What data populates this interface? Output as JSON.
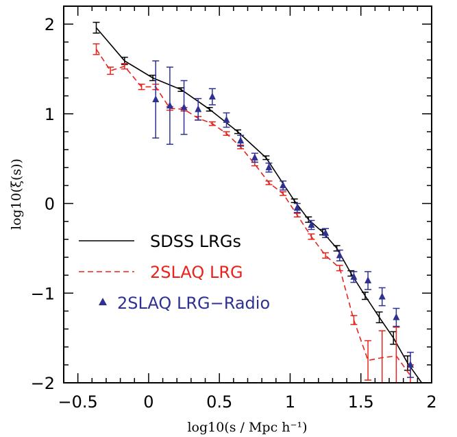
{
  "chart_data": {
    "type": "line",
    "title": "",
    "xlabel": "log10(s / Mpc h⁻¹)",
    "ylabel": "log10(ξ(s))",
    "xlim": [
      -0.6,
      2.0
    ],
    "ylim": [
      -2.0,
      2.2
    ],
    "x_ticks": [
      {
        "value": -0.5,
        "label": "−0.5"
      },
      {
        "value": 0,
        "label": "0"
      },
      {
        "value": 0.5,
        "label": "0.5"
      },
      {
        "value": 1,
        "label": "1"
      },
      {
        "value": 1.5,
        "label": "1.5"
      },
      {
        "value": 2,
        "label": "2"
      }
    ],
    "y_ticks": [
      {
        "value": -2,
        "label": "−2"
      },
      {
        "value": -1,
        "label": "−1"
      },
      {
        "value": 0,
        "label": "0"
      },
      {
        "value": 1,
        "label": "1"
      },
      {
        "value": 2,
        "label": "2"
      }
    ],
    "legend_position": "lower-left",
    "series": [
      {
        "name": "SDSS LRGs",
        "style": "solid",
        "color": "#000000",
        "marker": "none",
        "points": [
          {
            "x": -0.37,
            "y": 1.96,
            "err": 0.06
          },
          {
            "x": -0.17,
            "y": 1.59,
            "err": 0.04
          },
          {
            "x": 0.03,
            "y": 1.4,
            "err": 0.03
          },
          {
            "x": 0.23,
            "y": 1.27,
            "err": 0.02
          },
          {
            "x": 0.43,
            "y": 1.05,
            "err": 0.02
          },
          {
            "x": 0.63,
            "y": 0.8,
            "err": 0.02
          },
          {
            "x": 0.83,
            "y": 0.51,
            "err": 0.02
          },
          {
            "x": 1.03,
            "y": 0.03,
            "err": 0.02
          },
          {
            "x": 1.13,
            "y": -0.18,
            "err": 0.03
          },
          {
            "x": 1.23,
            "y": -0.32,
            "err": 0.03
          },
          {
            "x": 1.33,
            "y": -0.5,
            "err": 0.03
          },
          {
            "x": 1.43,
            "y": -0.78,
            "err": 0.03
          },
          {
            "x": 1.53,
            "y": -1.03,
            "err": 0.04
          },
          {
            "x": 1.63,
            "y": -1.27,
            "err": 0.06
          },
          {
            "x": 1.73,
            "y": -1.5,
            "err": 0.07
          },
          {
            "x": 1.83,
            "y": -1.78,
            "err": 0.08
          },
          {
            "x": 1.93,
            "y": -2.0,
            "err": 0.0
          }
        ]
      },
      {
        "name": "2SLAQ LRG",
        "style": "dashed",
        "color": "#e8231c",
        "marker": "none",
        "points": [
          {
            "x": -0.37,
            "y": 1.72,
            "err": 0.06
          },
          {
            "x": -0.27,
            "y": 1.48,
            "err": 0.04
          },
          {
            "x": -0.17,
            "y": 1.53,
            "err": 0.03
          },
          {
            "x": -0.05,
            "y": 1.3,
            "err": 0.03
          },
          {
            "x": 0.05,
            "y": 1.3,
            "err": 0.03
          },
          {
            "x": 0.15,
            "y": 1.06,
            "err": 0.02
          },
          {
            "x": 0.25,
            "y": 1.05,
            "err": 0.02
          },
          {
            "x": 0.35,
            "y": 0.95,
            "err": 0.02
          },
          {
            "x": 0.45,
            "y": 0.89,
            "err": 0.02
          },
          {
            "x": 0.55,
            "y": 0.78,
            "err": 0.02
          },
          {
            "x": 0.65,
            "y": 0.63,
            "err": 0.02
          },
          {
            "x": 0.75,
            "y": 0.44,
            "err": 0.02
          },
          {
            "x": 0.85,
            "y": 0.23,
            "err": 0.02
          },
          {
            "x": 0.95,
            "y": 0.11,
            "err": 0.02
          },
          {
            "x": 1.05,
            "y": -0.13,
            "err": 0.02
          },
          {
            "x": 1.15,
            "y": -0.37,
            "err": 0.03
          },
          {
            "x": 1.25,
            "y": -0.58,
            "err": 0.03
          },
          {
            "x": 1.35,
            "y": -0.72,
            "err": 0.03
          },
          {
            "x": 1.45,
            "y": -1.3,
            "err": 0.05
          },
          {
            "x": 1.55,
            "y": -1.75,
            "err": 0.22
          },
          {
            "x": 1.65,
            "y": -1.72,
            "err": 0.3
          },
          {
            "x": 1.75,
            "y": -1.7,
            "err": 0.32
          },
          {
            "x": 1.85,
            "y": -1.92,
            "err": 0.12
          }
        ]
      },
      {
        "name": "2SLAQ LRG−Radio",
        "style": "points",
        "color": "#2e3192",
        "marker": "triangle",
        "points": [
          {
            "x": 0.05,
            "y": 1.16,
            "err": 0.43
          },
          {
            "x": 0.15,
            "y": 1.09,
            "err": 0.43
          },
          {
            "x": 0.25,
            "y": 1.07,
            "err": 0.3
          },
          {
            "x": 0.35,
            "y": 1.05,
            "err": 0.12
          },
          {
            "x": 0.45,
            "y": 1.19,
            "err": 0.09
          },
          {
            "x": 0.55,
            "y": 0.93,
            "err": 0.08
          },
          {
            "x": 0.65,
            "y": 0.7,
            "err": 0.06
          },
          {
            "x": 0.75,
            "y": 0.51,
            "err": 0.05
          },
          {
            "x": 0.85,
            "y": 0.4,
            "err": 0.05
          },
          {
            "x": 0.95,
            "y": 0.2,
            "err": 0.05
          },
          {
            "x": 1.05,
            "y": -0.05,
            "err": 0.05
          },
          {
            "x": 1.15,
            "y": -0.24,
            "err": 0.05
          },
          {
            "x": 1.25,
            "y": -0.33,
            "err": 0.05
          },
          {
            "x": 1.35,
            "y": -0.58,
            "err": 0.06
          },
          {
            "x": 1.45,
            "y": -0.82,
            "err": 0.06
          },
          {
            "x": 1.55,
            "y": -0.86,
            "err": 0.1
          },
          {
            "x": 1.65,
            "y": -1.04,
            "err": 0.1
          },
          {
            "x": 1.75,
            "y": -1.27,
            "err": 0.1
          },
          {
            "x": 1.85,
            "y": -1.8,
            "err": 0.14
          }
        ]
      }
    ]
  }
}
